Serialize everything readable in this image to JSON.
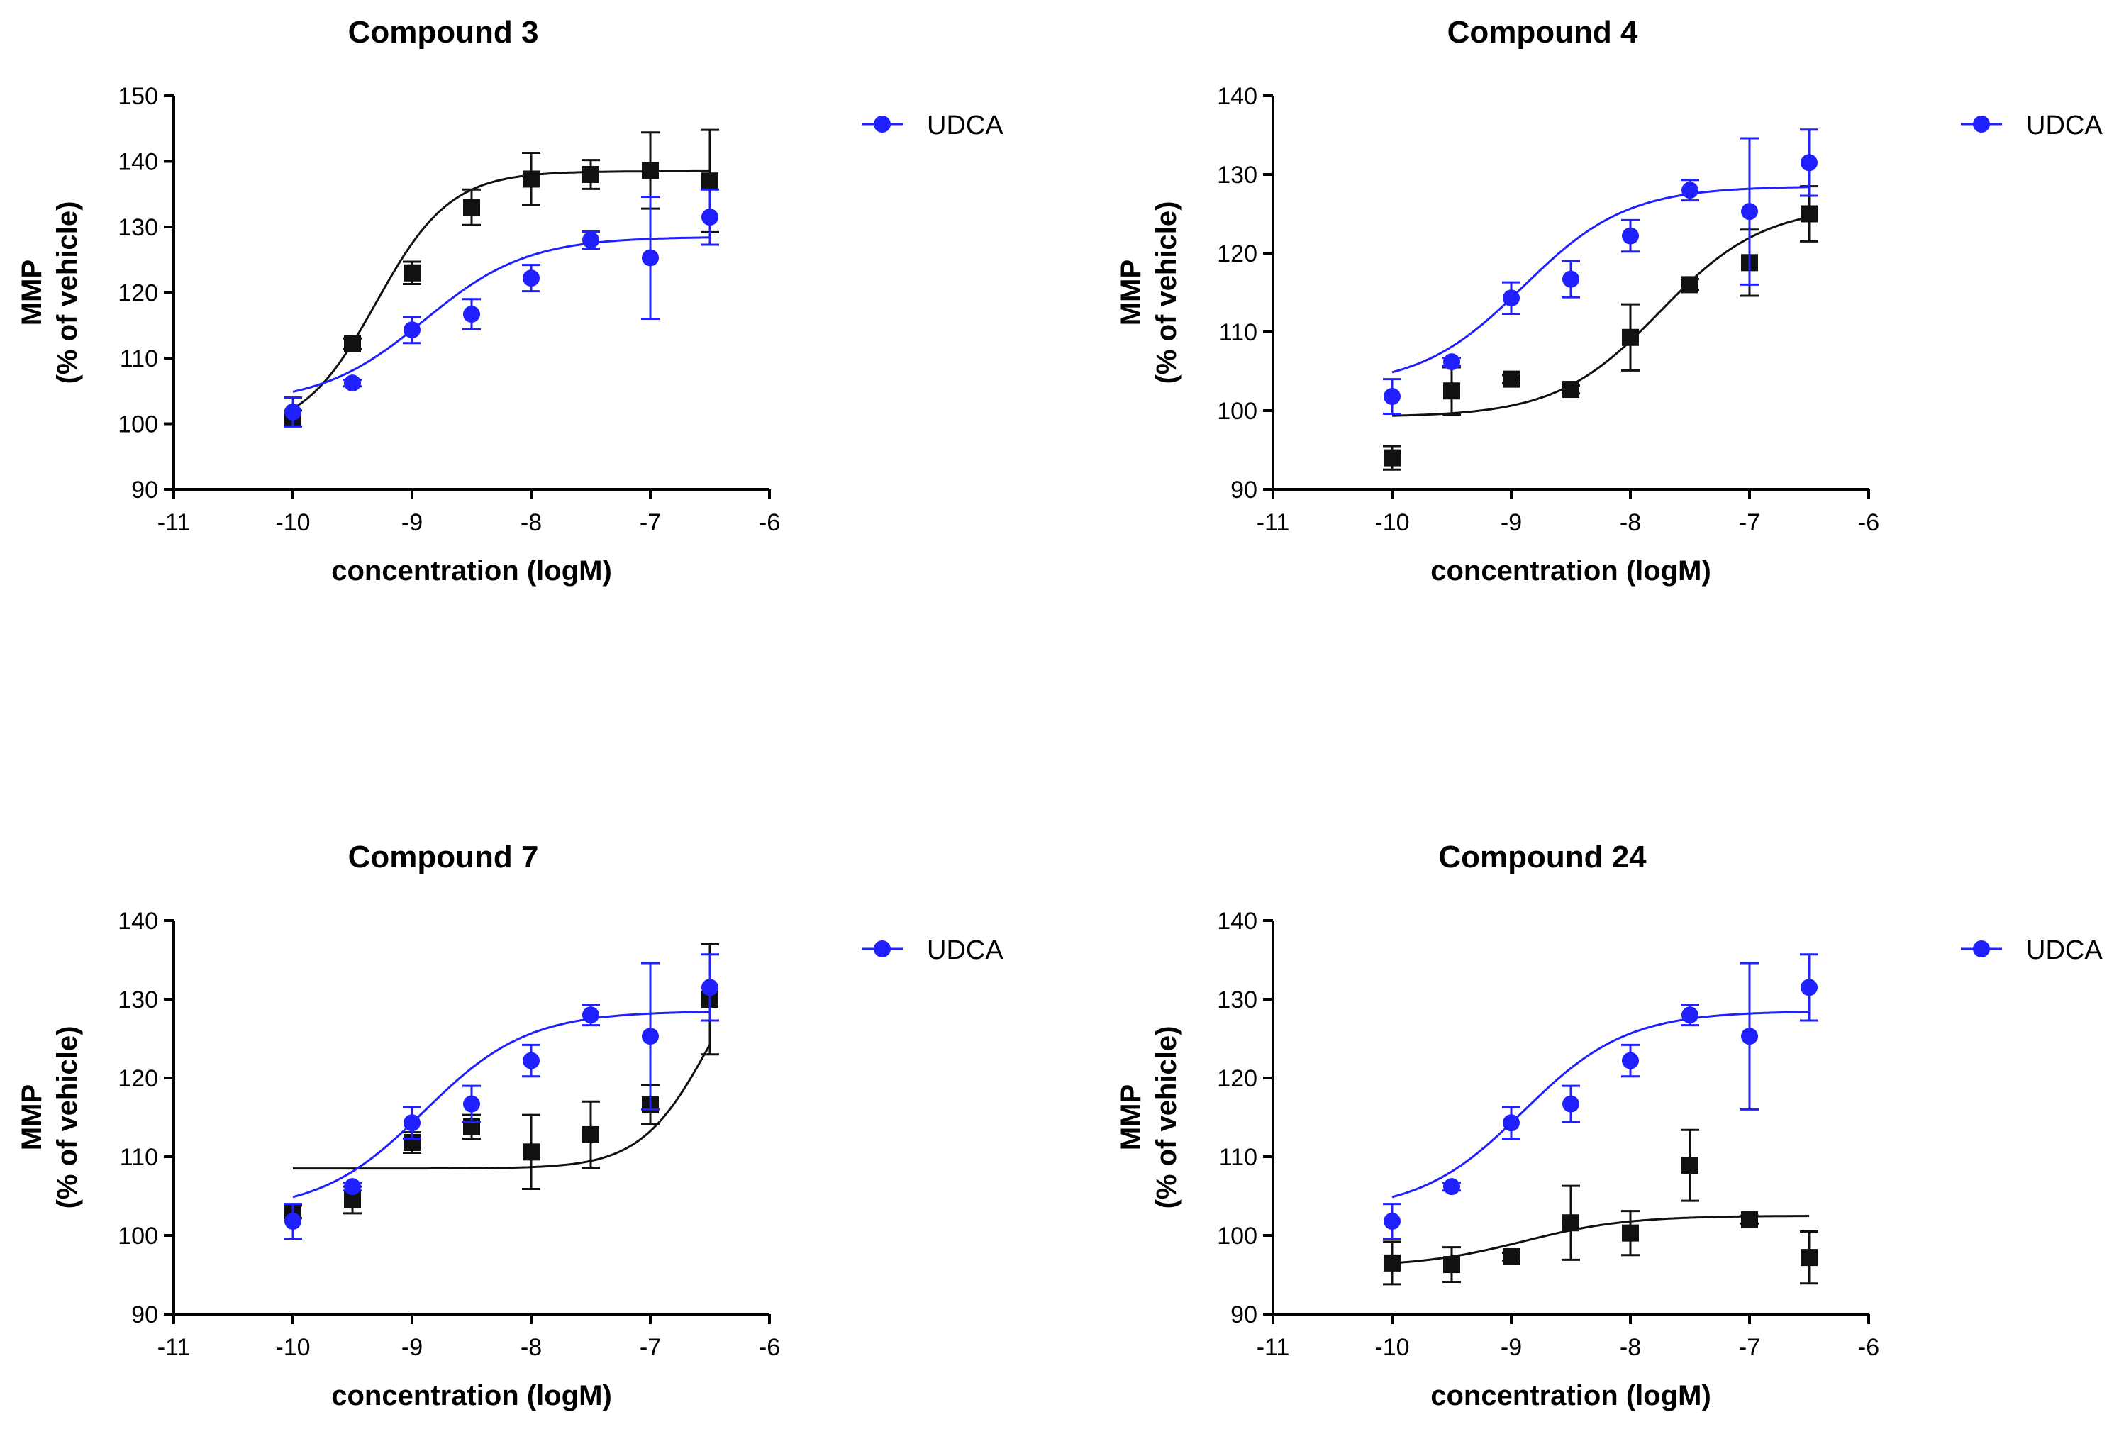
{
  "chart_data": [
    {
      "type": "scatter",
      "title": "Compound 3",
      "xlabel": "concentration (logM)",
      "ylabel": [
        "MMP",
        "(% of vehicle)"
      ],
      "xlim": [
        -11,
        -6
      ],
      "ylim": [
        90,
        150
      ],
      "xticks": [
        -11,
        -10,
        -9,
        -8,
        -7,
        -6
      ],
      "yticks": [
        90,
        100,
        110,
        120,
        130,
        140,
        150
      ],
      "xtick_labels": [
        "-11",
        "-10",
        "-9",
        "-8",
        "-7",
        "-6"
      ],
      "ytick_labels": [
        "90",
        "100",
        "110",
        "120",
        "130",
        "140",
        "150"
      ],
      "legend": [
        "UDCA"
      ],
      "series": [
        {
          "name": "UDCA",
          "color": "#1f1fff",
          "marker": "circle",
          "x": [
            -10,
            -9.5,
            -9,
            -8.5,
            -8,
            -7.5,
            -7,
            -6.5
          ],
          "y": [
            101.8,
            106.2,
            114.3,
            116.7,
            122.2,
            128.0,
            125.3,
            131.5
          ],
          "err": [
            2.2,
            0.5,
            2.0,
            2.3,
            2.0,
            1.3,
            9.3,
            4.2
          ],
          "fit": {
            "bottom": 103.0,
            "top": 128.5,
            "logEC50": -8.9,
            "hill": 1.0
          }
        },
        {
          "name": "Compound 3",
          "color": "#111111",
          "marker": "square",
          "x": [
            -10,
            -9.5,
            -9,
            -8.5,
            -8,
            -7.5,
            -7,
            -6.5
          ],
          "y": [
            100.8,
            112.2,
            123.0,
            133.0,
            137.3,
            138.0,
            138.6,
            137.0
          ],
          "err": [
            1.2,
            0.8,
            1.7,
            2.7,
            4.0,
            2.2,
            5.8,
            7.8
          ],
          "fit": {
            "bottom": 98.5,
            "top": 138.5,
            "logEC50": -9.3,
            "hill": 1.4
          }
        }
      ]
    },
    {
      "type": "scatter",
      "title": "Compound 4",
      "xlabel": "concentration (logM)",
      "ylabel": [
        "MMP",
        "(% of vehicle)"
      ],
      "xlim": [
        -11,
        -6
      ],
      "ylim": [
        90,
        140
      ],
      "xticks": [
        -11,
        -10,
        -9,
        -8,
        -7,
        -6
      ],
      "yticks": [
        90,
        100,
        110,
        120,
        130,
        140
      ],
      "xtick_labels": [
        "-11",
        "-10",
        "-9",
        "-8",
        "-7",
        "-6"
      ],
      "ytick_labels": [
        "90",
        "100",
        "110",
        "120",
        "130",
        "140"
      ],
      "legend": [
        "UDCA"
      ],
      "series": [
        {
          "name": "UDCA",
          "color": "#1f1fff",
          "marker": "circle",
          "x": [
            -10,
            -9.5,
            -9,
            -8.5,
            -8,
            -7.5,
            -7,
            -6.5
          ],
          "y": [
            101.8,
            106.2,
            114.3,
            116.7,
            122.2,
            128.0,
            125.3,
            131.5
          ],
          "err": [
            2.2,
            0.5,
            2.0,
            2.3,
            2.0,
            1.3,
            9.3,
            4.2
          ],
          "fit": {
            "bottom": 103.0,
            "top": 128.5,
            "logEC50": -8.9,
            "hill": 1.0
          }
        },
        {
          "name": "Compound 4",
          "color": "#111111",
          "marker": "square",
          "x": [
            -10,
            -9.5,
            -9,
            -8.5,
            -8,
            -7.5,
            -7,
            -6.5
          ],
          "y": [
            94.0,
            102.5,
            104.0,
            102.7,
            109.3,
            116.0,
            118.8,
            125.0
          ],
          "err": [
            1.5,
            3.0,
            0.5,
            0.5,
            4.2,
            0.7,
            4.2,
            3.5
          ],
          "fit": {
            "bottom": 99.2,
            "top": 126.0,
            "logEC50": -7.75,
            "hill": 1.0
          }
        }
      ]
    },
    {
      "type": "scatter",
      "title": "Compound 7",
      "xlabel": "concentration (logM)",
      "ylabel": [
        "MMP",
        "(% of vehicle)"
      ],
      "xlim": [
        -11,
        -6
      ],
      "ylim": [
        90,
        140
      ],
      "xticks": [
        -11,
        -10,
        -9,
        -8,
        -7,
        -6
      ],
      "yticks": [
        90,
        100,
        110,
        120,
        130,
        140
      ],
      "xtick_labels": [
        "-11",
        "-10",
        "-9",
        "-8",
        "-7",
        "-6"
      ],
      "ytick_labels": [
        "90",
        "100",
        "110",
        "120",
        "130",
        "140"
      ],
      "legend": [
        "UDCA"
      ],
      "series": [
        {
          "name": "UDCA",
          "color": "#1f1fff",
          "marker": "circle",
          "x": [
            -10,
            -9.5,
            -9,
            -8.5,
            -8,
            -7.5,
            -7,
            -6.5
          ],
          "y": [
            101.8,
            106.2,
            114.3,
            116.7,
            122.2,
            128.0,
            125.3,
            131.5
          ],
          "err": [
            2.2,
            0.5,
            2.0,
            2.3,
            2.0,
            1.3,
            9.3,
            4.2
          ],
          "fit": {
            "bottom": 103.0,
            "top": 128.5,
            "logEC50": -8.9,
            "hill": 1.0
          }
        },
        {
          "name": "Compound 7",
          "color": "#111111",
          "marker": "square",
          "x": [
            -10,
            -9.5,
            -9,
            -8.5,
            -8,
            -7.5,
            -7,
            -6.5
          ],
          "y": [
            103.0,
            104.5,
            111.8,
            113.8,
            110.6,
            112.8,
            116.6,
            130.0
          ],
          "err": [
            0.8,
            1.7,
            1.3,
            1.5,
            4.7,
            4.2,
            2.5,
            7.0
          ],
          "fit": {
            "bottom": 108.5,
            "top": 140.0,
            "logEC50": -6.5,
            "hill": 1.5
          }
        }
      ]
    },
    {
      "type": "scatter",
      "title": "Compound 24",
      "xlabel": "concentration (logM)",
      "ylabel": [
        "MMP",
        "(% of vehicle)"
      ],
      "xlim": [
        -11,
        -6
      ],
      "ylim": [
        90,
        140
      ],
      "xticks": [
        -11,
        -10,
        -9,
        -8,
        -7,
        -6
      ],
      "yticks": [
        90,
        100,
        110,
        120,
        130,
        140
      ],
      "xtick_labels": [
        "-11",
        "-10",
        "-9",
        "-8",
        "-7",
        "-6"
      ],
      "ytick_labels": [
        "90",
        "100",
        "110",
        "120",
        "130",
        "140"
      ],
      "legend": [
        "UDCA"
      ],
      "series": [
        {
          "name": "UDCA",
          "color": "#1f1fff",
          "marker": "circle",
          "x": [
            -10,
            -9.5,
            -9,
            -8.5,
            -8,
            -7.5,
            -7,
            -6.5
          ],
          "y": [
            101.8,
            106.2,
            114.3,
            116.7,
            122.2,
            128.0,
            125.3,
            131.5
          ],
          "err": [
            2.2,
            0.5,
            2.0,
            2.3,
            2.0,
            1.3,
            9.3,
            4.2
          ],
          "fit": {
            "bottom": 103.0,
            "top": 128.5,
            "logEC50": -8.9,
            "hill": 1.0
          }
        },
        {
          "name": "Compound 24",
          "color": "#111111",
          "marker": "square",
          "x": [
            -10,
            -9.5,
            -9,
            -8.5,
            -8,
            -7.5,
            -7,
            -6.5
          ],
          "y": [
            96.5,
            96.3,
            97.3,
            101.6,
            100.3,
            108.9,
            102.0,
            97.2
          ],
          "err": [
            2.7,
            2.2,
            0.5,
            4.7,
            2.8,
            4.5,
            0.5,
            3.3
          ],
          "fit": {
            "bottom": 96.0,
            "top": 102.5,
            "logEC50": -8.9,
            "hill": 1.0
          }
        }
      ]
    }
  ]
}
